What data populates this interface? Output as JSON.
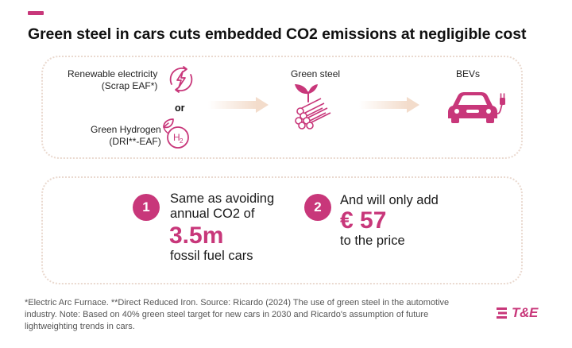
{
  "title": "Green steel in cars cuts embedded CO2 emissions at negligible cost",
  "sources": {
    "renewable": {
      "line1": "Renewable electricity",
      "line2": "(Scrap EAF*)",
      "icon": "lightning-cycle-icon"
    },
    "connector": "or",
    "hydrogen": {
      "line1": "Green Hydrogen",
      "line2": "(DRI**-EAF)",
      "icon": "hydrogen-leaf-icon",
      "symbol": "H",
      "subscript": "2"
    }
  },
  "nodes": {
    "steel": {
      "label": "Green steel",
      "icon": "green-steel-bars-icon"
    },
    "bevs": {
      "label": "BEVs",
      "icon": "electric-car-icon"
    }
  },
  "facts": [
    {
      "number": "1",
      "line1": "Same as avoiding",
      "line2": "annual CO2 of",
      "highlight": "3.5m",
      "line3": "fossil fuel cars"
    },
    {
      "number": "2",
      "line1": "And will only add",
      "highlight": "€ 57",
      "line2": "to the price"
    }
  ],
  "footnote": "*Electric Arc Furnace. **Direct Reduced Iron. Source: Ricardo (2024) The use of green steel in the automotive industry. Note: Based on 40% green steel target for new cars in 2030 and Ricardo's assumption of future lightweighting trends in cars.",
  "logo": {
    "text": "T&E",
    "icon": "te-logo-icon"
  },
  "colors": {
    "accent": "#c8377a",
    "panel_border": "#ead9cf",
    "arrow": "#f3dccb"
  }
}
